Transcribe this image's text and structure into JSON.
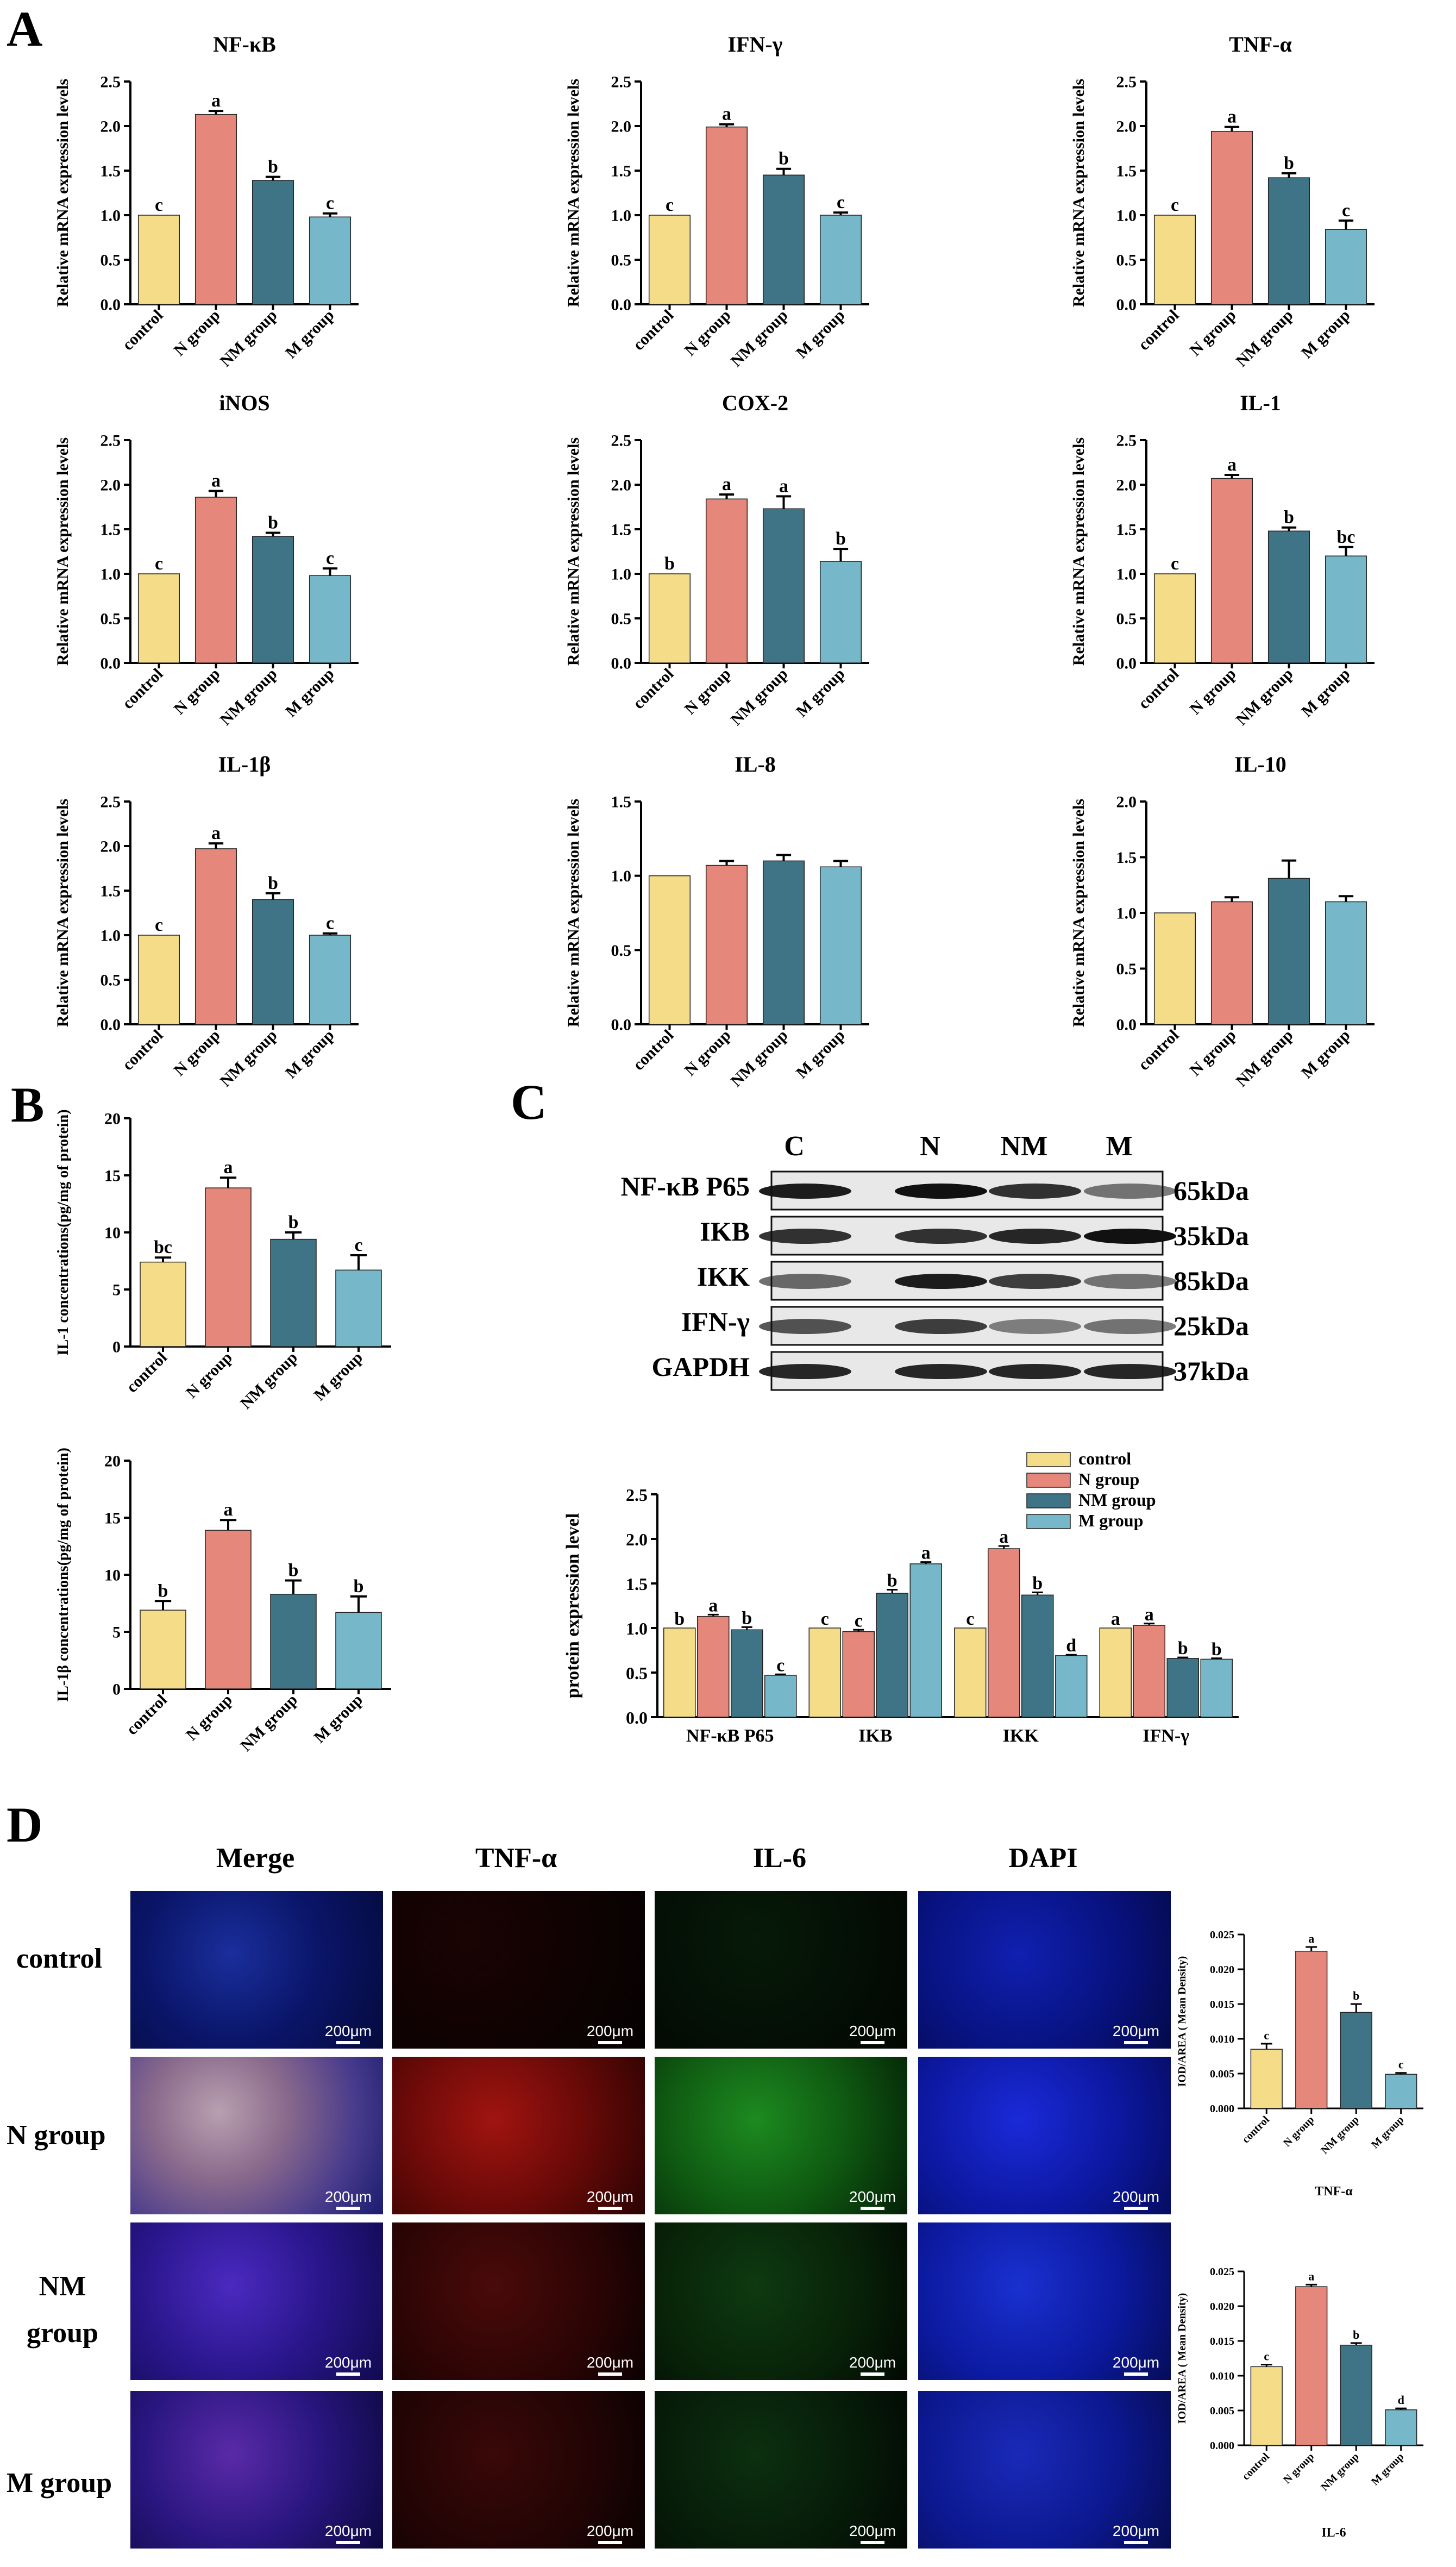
{
  "panels": {
    "A": "A",
    "B": "B",
    "C": "C",
    "D": "D"
  },
  "colors": {
    "control": "#F5DC89",
    "N": "#E5877A",
    "NM": "#3F7487",
    "M": "#76B8C9"
  },
  "chart_data": [
    {
      "id": "nfkb",
      "type": "bar",
      "title": "NF-κB",
      "ylabel": "Relative mRNA expression levels",
      "categories": [
        "control",
        "N group",
        "NM group",
        "M group"
      ],
      "values": [
        1.0,
        2.13,
        1.39,
        0.98
      ],
      "errors": [
        0,
        0.04,
        0.04,
        0.04
      ],
      "letters": [
        "c",
        "a",
        "b",
        "c"
      ],
      "ylim": [
        0,
        2.5
      ],
      "yticks": [
        "0.0",
        "0.5",
        "1.0",
        "1.5",
        "2.0",
        "2.5"
      ]
    },
    {
      "id": "ifng",
      "type": "bar",
      "title": "IFN-γ",
      "ylabel": "Relative mRNA expression levels",
      "categories": [
        "control",
        "N group",
        "NM group",
        "M group"
      ],
      "values": [
        1.0,
        1.99,
        1.45,
        1.0
      ],
      "errors": [
        0,
        0.03,
        0.07,
        0.03
      ],
      "letters": [
        "c",
        "a",
        "b",
        "c"
      ],
      "ylim": [
        0,
        2.5
      ],
      "yticks": [
        "0.0",
        "0.5",
        "1.0",
        "1.5",
        "2.0",
        "2.5"
      ]
    },
    {
      "id": "tnfa",
      "type": "bar",
      "title": "TNF-α",
      "ylabel": "Relative mRNA expression levels",
      "categories": [
        "control",
        "N group",
        "NM group",
        "M group"
      ],
      "values": [
        1.0,
        1.94,
        1.42,
        0.84
      ],
      "errors": [
        0,
        0.05,
        0.05,
        0.1
      ],
      "letters": [
        "c",
        "a",
        "b",
        "c"
      ],
      "ylim": [
        0,
        2.5
      ],
      "yticks": [
        "0.0",
        "0.5",
        "1.0",
        "1.5",
        "2.0",
        "2.5"
      ]
    },
    {
      "id": "inos",
      "type": "bar",
      "title": "iNOS",
      "ylabel": "Relative mRNA expression levels",
      "categories": [
        "control",
        "N group",
        "NM group",
        "M group"
      ],
      "values": [
        1.0,
        1.86,
        1.42,
        0.98
      ],
      "errors": [
        0,
        0.07,
        0.04,
        0.08
      ],
      "letters": [
        "c",
        "a",
        "b",
        "c"
      ],
      "ylim": [
        0,
        2.5
      ],
      "yticks": [
        "0.0",
        "0.5",
        "1.0",
        "1.5",
        "2.0",
        "2.5"
      ]
    },
    {
      "id": "cox2",
      "type": "bar",
      "title": "COX-2",
      "ylabel": "Relative mRNA expression levels",
      "categories": [
        "control",
        "N group",
        "NM group",
        "M group"
      ],
      "values": [
        1.0,
        1.84,
        1.73,
        1.14
      ],
      "errors": [
        0,
        0.05,
        0.14,
        0.14
      ],
      "letters": [
        "b",
        "a",
        "a",
        "b"
      ],
      "ylim": [
        0,
        2.5
      ],
      "yticks": [
        "0.0",
        "0.5",
        "1.0",
        "1.5",
        "2.0",
        "2.5"
      ]
    },
    {
      "id": "il1",
      "type": "bar",
      "title": "IL-1",
      "ylabel": "Relative mRNA expression levels",
      "categories": [
        "control",
        "N group",
        "NM group",
        "M group"
      ],
      "values": [
        1.0,
        2.07,
        1.48,
        1.2
      ],
      "errors": [
        0,
        0.04,
        0.04,
        0.1
      ],
      "letters": [
        "c",
        "a",
        "b",
        "bc"
      ],
      "ylim": [
        0,
        2.5
      ],
      "yticks": [
        "0.0",
        "0.5",
        "1.0",
        "1.5",
        "2.0",
        "2.5"
      ]
    },
    {
      "id": "il1b",
      "type": "bar",
      "title": "IL-1β",
      "ylabel": "Relative mRNA expression levels",
      "categories": [
        "control",
        "N group",
        "NM group",
        "M group"
      ],
      "values": [
        1.0,
        1.97,
        1.4,
        1.0
      ],
      "errors": [
        0,
        0.06,
        0.07,
        0.02
      ],
      "letters": [
        "c",
        "a",
        "b",
        "c"
      ],
      "ylim": [
        0,
        2.5
      ],
      "yticks": [
        "0.0",
        "0.5",
        "1.0",
        "1.5",
        "2.0",
        "2.5"
      ]
    },
    {
      "id": "il8",
      "type": "bar",
      "title": "IL-8",
      "ylabel": "Relative mRNA expression levels",
      "categories": [
        "control",
        "N group",
        "NM group",
        "M group"
      ],
      "values": [
        1.0,
        1.07,
        1.1,
        1.06
      ],
      "errors": [
        0,
        0.03,
        0.04,
        0.04
      ],
      "letters": [
        "",
        "",
        "",
        ""
      ],
      "ylim": [
        0,
        1.5
      ],
      "yticks": [
        "0.0",
        "0.5",
        "1.0",
        "1.5"
      ]
    },
    {
      "id": "il10",
      "type": "bar",
      "title": "IL-10",
      "ylabel": "Relative mRNA expression levels",
      "categories": [
        "control",
        "N group",
        "NM group",
        "M group"
      ],
      "values": [
        1.0,
        1.1,
        1.31,
        1.1
      ],
      "errors": [
        0,
        0.04,
        0.16,
        0.05
      ],
      "letters": [
        "",
        "",
        "",
        ""
      ],
      "ylim": [
        0,
        2.0
      ],
      "yticks": [
        "0.0",
        "0.5",
        "1.0",
        "1.5",
        "2.0"
      ]
    },
    {
      "id": "il1prot",
      "type": "bar",
      "title": "",
      "ylabel": "IL-1 concentrations(pg/mg of protein)",
      "categories": [
        "control",
        "N group",
        "NM group",
        "M group"
      ],
      "values": [
        7.4,
        13.9,
        9.4,
        6.7
      ],
      "errors": [
        0.4,
        0.9,
        0.6,
        1.3
      ],
      "letters": [
        "bc",
        "a",
        "b",
        "c"
      ],
      "ylim": [
        0,
        20
      ],
      "yticks": [
        "0",
        "5",
        "10",
        "15",
        "20"
      ]
    },
    {
      "id": "il1bprot",
      "type": "bar",
      "title": "",
      "ylabel": "IL-1β concentrations(pg/mg of protein)",
      "categories": [
        "control",
        "N group",
        "NM group",
        "M group"
      ],
      "values": [
        6.9,
        13.9,
        8.3,
        6.7
      ],
      "errors": [
        0.8,
        0.9,
        1.2,
        1.4
      ],
      "letters": [
        "b",
        "a",
        "b",
        "b"
      ],
      "ylim": [
        0,
        20
      ],
      "yticks": [
        "0",
        "5",
        "10",
        "15",
        "20"
      ]
    },
    {
      "id": "protein",
      "type": "grouped-bar",
      "title": "",
      "ylabel": "protein expression level",
      "categories": [
        "NF-κB P65",
        "IKB",
        "IKK",
        "IFN-γ"
      ],
      "series": [
        {
          "name": "control",
          "values": [
            1.0,
            1.0,
            1.0,
            1.0
          ],
          "errors": [
            0,
            0,
            0,
            0
          ],
          "letters": [
            "b",
            "c",
            "c",
            "a"
          ]
        },
        {
          "name": "N group",
          "values": [
            1.13,
            0.96,
            1.89,
            1.03
          ],
          "errors": [
            0.02,
            0.02,
            0.03,
            0.02
          ],
          "letters": [
            "a",
            "c",
            "a",
            "a"
          ]
        },
        {
          "name": "NM group",
          "values": [
            0.98,
            1.39,
            1.37,
            0.66
          ],
          "errors": [
            0.03,
            0.04,
            0.03,
            0.01
          ],
          "letters": [
            "b",
            "b",
            "b",
            "b"
          ]
        },
        {
          "name": "M group",
          "values": [
            0.47,
            1.72,
            0.69,
            0.65
          ],
          "errors": [
            0.01,
            0.02,
            0.01,
            0.01
          ],
          "letters": [
            "c",
            "a",
            "d",
            "b"
          ]
        }
      ],
      "ylim": [
        0,
        2.5
      ],
      "yticks": [
        "0.0",
        "0.5",
        "1.0",
        "1.5",
        "2.0",
        "2.5"
      ]
    },
    {
      "id": "iftnf",
      "type": "bar",
      "title": "",
      "xlabel": "TNF-α",
      "ylabel": "IOD/AREA ( Mean Density)",
      "categories": [
        "control",
        "N group",
        "NM group",
        "M group"
      ],
      "values": [
        0.0085,
        0.0226,
        0.0138,
        0.0049
      ],
      "errors": [
        0.0008,
        0.0006,
        0.0012,
        0.0002
      ],
      "letters": [
        "c",
        "a",
        "b",
        "c"
      ],
      "ylim": [
        0,
        0.025
      ],
      "yticks": [
        "0.000",
        "0.005",
        "0.010",
        "0.015",
        "0.020",
        "0.025"
      ]
    },
    {
      "id": "ifil6",
      "type": "bar",
      "title": "",
      "xlabel": "IL-6",
      "ylabel": "IOD/AREA ( Mean Density)",
      "categories": [
        "control",
        "N group",
        "NM group",
        "M group"
      ],
      "values": [
        0.0113,
        0.0228,
        0.0144,
        0.0051
      ],
      "errors": [
        0.0003,
        0.0003,
        0.0003,
        0.0002
      ],
      "letters": [
        "c",
        "a",
        "b",
        "d"
      ],
      "ylim": [
        0,
        0.025
      ],
      "yticks": [
        "0.000",
        "0.005",
        "0.010",
        "0.015",
        "0.020",
        "0.025"
      ]
    }
  ],
  "blot": {
    "lanes": [
      "C",
      "N",
      "NM",
      "M"
    ],
    "rows": [
      {
        "name": "NF-κB P65",
        "kda": "65kDa"
      },
      {
        "name": "IKB",
        "kda": "35kDa"
      },
      {
        "name": "IKK",
        "kda": "85kDa"
      },
      {
        "name": "IFN-γ",
        "kda": "25kDa"
      },
      {
        "name": "GAPDH",
        "kda": "37kDa"
      }
    ]
  },
  "if": {
    "columns": [
      "Merge",
      "TNF-α",
      "IL-6",
      "DAPI"
    ],
    "rows": [
      "control",
      "N group",
      "NM\ngroup",
      "M group"
    ],
    "scale": "200μm"
  }
}
